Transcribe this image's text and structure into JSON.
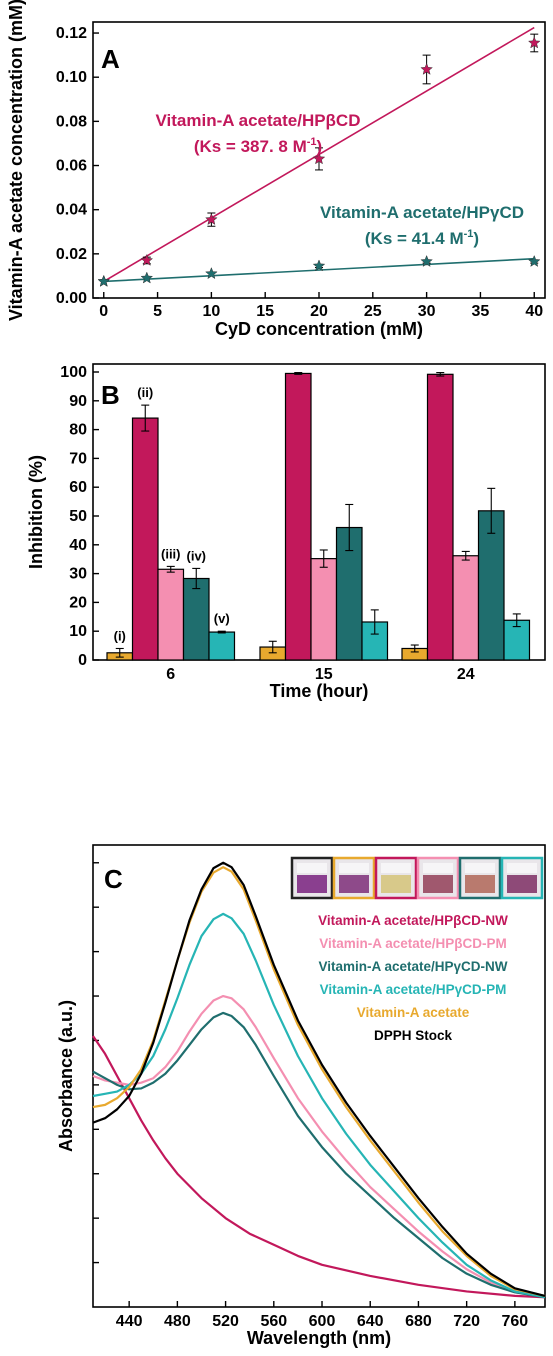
{
  "chart_data": [
    {
      "panel": "A",
      "type": "scatter",
      "xlabel": "CyD concentration (mM)",
      "ylabel": "Vitamin-A acetate concentration (mM)",
      "xlim": [
        -1,
        41
      ],
      "ylim": [
        0,
        0.125
      ],
      "xticks": [
        "0",
        "5",
        "10",
        "15",
        "20",
        "25",
        "30",
        "35",
        "40"
      ],
      "yticks": [
        "0.00",
        "0.02",
        "0.04",
        "0.06",
        "0.08",
        "0.10",
        "0.12"
      ],
      "series": [
        {
          "name": "Vitamin-A acetate/HPβCD",
          "annotation": "(Ks = 387. 8 M",
          "annotation_sup": "-1",
          "annotation_close": ")",
          "color": "#c2185b",
          "marker": "star",
          "x": [
            0,
            4,
            10,
            20,
            30,
            40
          ],
          "y": [
            0.0075,
            0.017,
            0.0355,
            0.063,
            0.1035,
            0.1155
          ],
          "err": [
            0.0005,
            0.0015,
            0.003,
            0.005,
            0.0065,
            0.004
          ],
          "fit": [
            [
              0,
              0.0075
            ],
            [
              40,
              0.1225
            ]
          ]
        },
        {
          "name": "Vitamin-A acetate/HPγCD",
          "annotation": "(Ks = 41.4 M",
          "annotation_sup": "-1",
          "annotation_close": ")",
          "color": "#1f6e6e",
          "marker": "star",
          "x": [
            0,
            4,
            10,
            20,
            30,
            40
          ],
          "y": [
            0.0075,
            0.009,
            0.011,
            0.0145,
            0.0165,
            0.0165
          ],
          "err": [
            0.0004,
            0.0005,
            0.0006,
            0.0007,
            0.0007,
            0.0007
          ],
          "fit": [
            [
              0,
              0.0075
            ],
            [
              40,
              0.0178
            ]
          ]
        }
      ]
    },
    {
      "panel": "B",
      "type": "bar",
      "xlabel": "Time (hour)",
      "ylabel": "Inhibition (%)",
      "ylim": [
        0,
        100
      ],
      "yticks": [
        "0",
        "10",
        "20",
        "30",
        "40",
        "50",
        "60",
        "70",
        "80",
        "90",
        "100"
      ],
      "categories": [
        "6",
        "15",
        "24"
      ],
      "series": [
        {
          "name": "(i)",
          "color": "#e8a92e",
          "values": [
            2.5,
            4.5,
            4.0
          ],
          "err": [
            1.5,
            2.0,
            1.2
          ]
        },
        {
          "name": "(ii)",
          "color": "#c2185b",
          "values": [
            84,
            99.5,
            99.2
          ],
          "err": [
            4.5,
            0.3,
            0.6
          ]
        },
        {
          "name": "(iii)",
          "color": "#f48fb1",
          "values": [
            31.5,
            35.2,
            36.2
          ],
          "err": [
            1.0,
            3.0,
            1.5
          ]
        },
        {
          "name": "(iv)",
          "color": "#1f6e6e",
          "values": [
            28.3,
            46.0,
            51.8
          ],
          "err": [
            3.5,
            8.0,
            7.8
          ]
        },
        {
          "name": "(v)",
          "color": "#26b5b5",
          "values": [
            9.7,
            13.2,
            13.8
          ],
          "err": [
            0.3,
            4.2,
            2.2
          ]
        }
      ]
    },
    {
      "panel": "C",
      "type": "line",
      "xlabel": "Wavelength (nm)",
      "ylabel": "Absorbance (a.u.)",
      "xlim": [
        410,
        785
      ],
      "ylim": [
        0,
        1.04
      ],
      "xticks": [
        "440",
        "480",
        "520",
        "560",
        "600",
        "640",
        "680",
        "720",
        "760"
      ],
      "series": [
        {
          "name": "Vitamin-A acetate/HPβCD-NW",
          "color": "#c2185b",
          "points": [
            [
              410,
              0.61
            ],
            [
              420,
              0.57
            ],
            [
              430,
              0.52
            ],
            [
              440,
              0.47
            ],
            [
              450,
              0.42
            ],
            [
              460,
              0.375
            ],
            [
              470,
              0.335
            ],
            [
              480,
              0.3
            ],
            [
              500,
              0.245
            ],
            [
              520,
              0.2
            ],
            [
              540,
              0.165
            ],
            [
              560,
              0.14
            ],
            [
              580,
              0.115
            ],
            [
              600,
              0.095
            ],
            [
              640,
              0.07
            ],
            [
              680,
              0.05
            ],
            [
              720,
              0.035
            ],
            [
              760,
              0.025
            ],
            [
              785,
              0.022
            ]
          ]
        },
        {
          "name": "Vitamin-A acetate/HPβCD-PM",
          "color": "#f48fb1",
          "points": [
            [
              410,
              0.52
            ],
            [
              420,
              0.51
            ],
            [
              430,
              0.505
            ],
            [
              440,
              0.5
            ],
            [
              450,
              0.505
            ],
            [
              460,
              0.515
            ],
            [
              470,
              0.54
            ],
            [
              480,
              0.575
            ],
            [
              490,
              0.62
            ],
            [
              500,
              0.66
            ],
            [
              510,
              0.69
            ],
            [
              518,
              0.7
            ],
            [
              525,
              0.695
            ],
            [
              535,
              0.67
            ],
            [
              545,
              0.63
            ],
            [
              560,
              0.56
            ],
            [
              580,
              0.47
            ],
            [
              600,
              0.395
            ],
            [
              620,
              0.33
            ],
            [
              640,
              0.27
            ],
            [
              660,
              0.22
            ],
            [
              680,
              0.17
            ],
            [
              700,
              0.125
            ],
            [
              720,
              0.085
            ],
            [
              740,
              0.055
            ],
            [
              760,
              0.035
            ],
            [
              785,
              0.025
            ]
          ]
        },
        {
          "name": "Vitamin-A acetate/HPγCD-NW",
          "color": "#1f6e6e",
          "points": [
            [
              410,
              0.53
            ],
            [
              420,
              0.515
            ],
            [
              430,
              0.5
            ],
            [
              440,
              0.49
            ],
            [
              450,
              0.492
            ],
            [
              460,
              0.505
            ],
            [
              470,
              0.525
            ],
            [
              480,
              0.555
            ],
            [
              490,
              0.59
            ],
            [
              500,
              0.625
            ],
            [
              510,
              0.652
            ],
            [
              518,
              0.662
            ],
            [
              525,
              0.655
            ],
            [
              535,
              0.63
            ],
            [
              545,
              0.59
            ],
            [
              560,
              0.52
            ],
            [
              580,
              0.43
            ],
            [
              600,
              0.36
            ],
            [
              620,
              0.3
            ],
            [
              640,
              0.25
            ],
            [
              660,
              0.2
            ],
            [
              680,
              0.155
            ],
            [
              700,
              0.11
            ],
            [
              720,
              0.075
            ],
            [
              740,
              0.05
            ],
            [
              760,
              0.033
            ],
            [
              785,
              0.022
            ]
          ]
        },
        {
          "name": "Vitamin-A acetate/HPγCD-PM",
          "color": "#26b5b5",
          "points": [
            [
              410,
              0.475
            ],
            [
              420,
              0.48
            ],
            [
              430,
              0.485
            ],
            [
              440,
              0.5
            ],
            [
              450,
              0.525
            ],
            [
              460,
              0.565
            ],
            [
              470,
              0.625
            ],
            [
              480,
              0.695
            ],
            [
              490,
              0.77
            ],
            [
              500,
              0.835
            ],
            [
              510,
              0.873
            ],
            [
              518,
              0.885
            ],
            [
              525,
              0.875
            ],
            [
              535,
              0.84
            ],
            [
              545,
              0.78
            ],
            [
              560,
              0.68
            ],
            [
              580,
              0.565
            ],
            [
              600,
              0.47
            ],
            [
              620,
              0.39
            ],
            [
              640,
              0.32
            ],
            [
              660,
              0.26
            ],
            [
              680,
              0.2
            ],
            [
              700,
              0.145
            ],
            [
              720,
              0.095
            ],
            [
              740,
              0.06
            ],
            [
              760,
              0.035
            ],
            [
              785,
              0.022
            ]
          ]
        },
        {
          "name": "Vitamin-A acetate",
          "color": "#e8a92e",
          "points": [
            [
              410,
              0.45
            ],
            [
              420,
              0.455
            ],
            [
              430,
              0.47
            ],
            [
              440,
              0.495
            ],
            [
              450,
              0.535
            ],
            [
              460,
              0.6
            ],
            [
              470,
              0.69
            ],
            [
              480,
              0.78
            ],
            [
              490,
              0.865
            ],
            [
              500,
              0.935
            ],
            [
              510,
              0.978
            ],
            [
              518,
              0.99
            ],
            [
              525,
              0.98
            ],
            [
              535,
              0.94
            ],
            [
              545,
              0.87
            ],
            [
              560,
              0.76
            ],
            [
              580,
              0.635
            ],
            [
              600,
              0.535
            ],
            [
              620,
              0.45
            ],
            [
              640,
              0.375
            ],
            [
              660,
              0.305
            ],
            [
              680,
              0.235
            ],
            [
              700,
              0.17
            ],
            [
              720,
              0.115
            ],
            [
              740,
              0.07
            ],
            [
              760,
              0.04
            ],
            [
              785,
              0.025
            ]
          ]
        },
        {
          "name": "DPPH Stock",
          "color": "#000000",
          "points": [
            [
              410,
              0.415
            ],
            [
              420,
              0.425
            ],
            [
              430,
              0.445
            ],
            [
              440,
              0.475
            ],
            [
              450,
              0.525
            ],
            [
              460,
              0.595
            ],
            [
              470,
              0.685
            ],
            [
              480,
              0.78
            ],
            [
              490,
              0.87
            ],
            [
              500,
              0.94
            ],
            [
              510,
              0.988
            ],
            [
              518,
              1.0
            ],
            [
              525,
              0.99
            ],
            [
              535,
              0.95
            ],
            [
              545,
              0.88
            ],
            [
              560,
              0.77
            ],
            [
              580,
              0.645
            ],
            [
              600,
              0.545
            ],
            [
              620,
              0.46
            ],
            [
              640,
              0.385
            ],
            [
              660,
              0.315
            ],
            [
              680,
              0.245
            ],
            [
              700,
              0.18
            ],
            [
              720,
              0.12
            ],
            [
              740,
              0.075
            ],
            [
              760,
              0.042
            ],
            [
              785,
              0.025
            ]
          ]
        }
      ],
      "vials": [
        {
          "frame": "#222222",
          "liquid": "#8a3f8f"
        },
        {
          "frame": "#e8a92e",
          "liquid": "#8e4a8a"
        },
        {
          "frame": "#c2185b",
          "liquid": "#d8c98a"
        },
        {
          "frame": "#f48fb1",
          "liquid": "#a0586e"
        },
        {
          "frame": "#1f6e6e",
          "liquid": "#b97a6e"
        },
        {
          "frame": "#26b5b5",
          "liquid": "#8e4a78"
        }
      ]
    }
  ]
}
